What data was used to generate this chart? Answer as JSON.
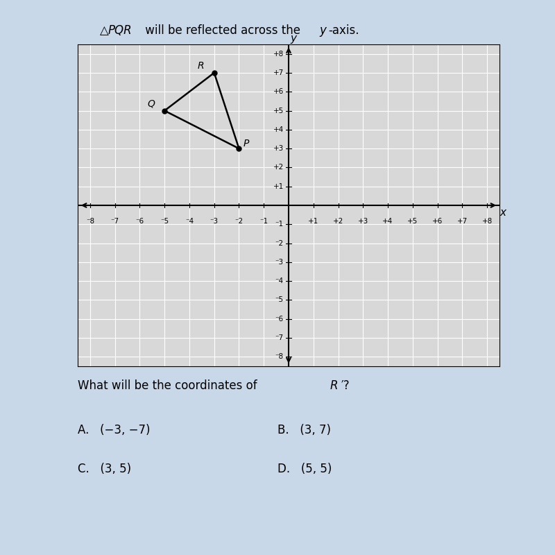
{
  "title_parts": [
    {
      "text": "△",
      "style": "normal"
    },
    {
      "text": "PQR",
      "style": "italic"
    },
    {
      "text": " will be reflected across the ",
      "style": "normal"
    },
    {
      "text": "y",
      "style": "italic"
    },
    {
      "text": "-axis.",
      "style": "normal"
    }
  ],
  "question_parts": [
    {
      "text": "What will be the coordinates of ",
      "style": "normal"
    },
    {
      "text": "R′",
      "style": "italic"
    },
    {
      "text": "?",
      "style": "normal"
    }
  ],
  "answer_choices": [
    {
      "label": "A.",
      "text": "(−3, −7)"
    },
    {
      "label": "B.",
      "text": "(3, 7)"
    },
    {
      "label": "C.",
      "text": "(3, 5)"
    },
    {
      "label": "D.",
      "text": "(5, 5)"
    }
  ],
  "P": [
    -2,
    3
  ],
  "Q": [
    -5,
    5
  ],
  "R": [
    -3,
    7
  ],
  "grid_range": [
    -8,
    8
  ],
  "bg_color": "#c8d8e8",
  "plot_bg": "#d8d8d8",
  "triangle_color": "black",
  "label_fontsize": 10,
  "tick_fontsize": 7.5,
  "grid_color": "#bbbbbb",
  "axis_line_color": "black"
}
